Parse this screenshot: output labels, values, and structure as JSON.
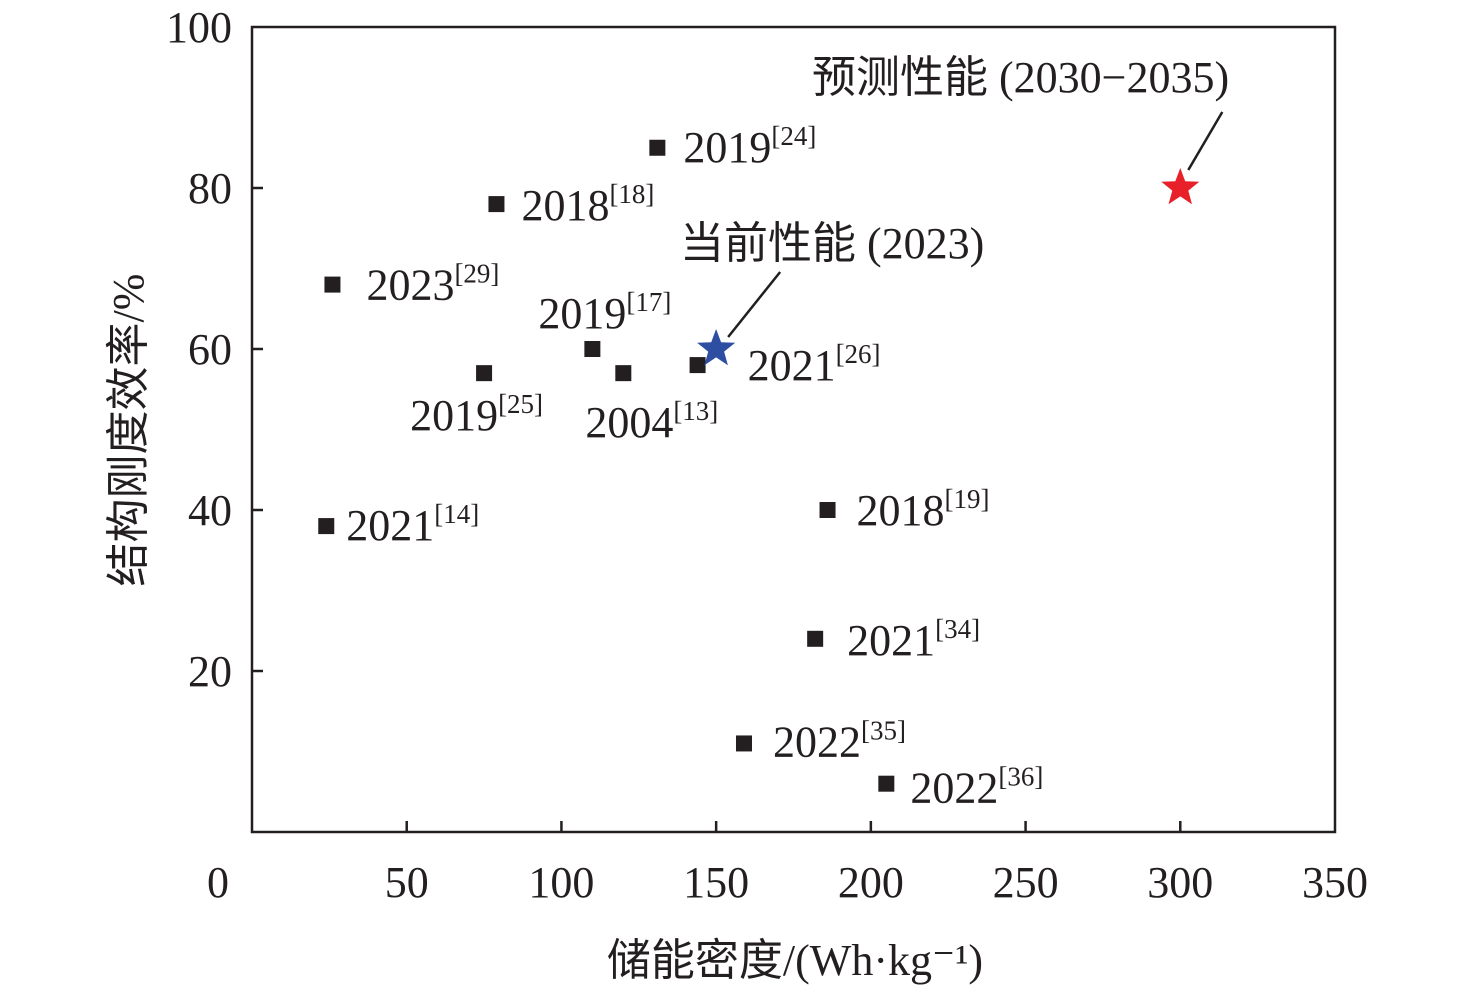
{
  "chart_data": {
    "type": "scatter",
    "xlabel": "储能密度/(Wh·kg⁻¹)",
    "ylabel": "结构刚度效率/%",
    "xlim": [
      0,
      350
    ],
    "ylim": [
      0,
      100
    ],
    "x_ticks": [
      0,
      50,
      100,
      150,
      200,
      250,
      300,
      350
    ],
    "y_ticks": [
      20,
      40,
      60,
      80,
      100
    ],
    "grid": false,
    "series": [
      {
        "name": "literature",
        "marker": "square",
        "color": "#231f20",
        "points": [
          {
            "x": 131,
            "y": 85,
            "label": "2019",
            "ref": "[24]"
          },
          {
            "x": 79,
            "y": 78,
            "label": "2018",
            "ref": "[18]"
          },
          {
            "x": 26,
            "y": 68,
            "label": "2023",
            "ref": "[29]"
          },
          {
            "x": 110,
            "y": 60,
            "label": "2019",
            "ref": "[17]"
          },
          {
            "x": 75,
            "y": 57,
            "label": "2019",
            "ref": "[25]"
          },
          {
            "x": 120,
            "y": 57,
            "label": "2004",
            "ref": "[13]"
          },
          {
            "x": 144,
            "y": 58,
            "label": "2021",
            "ref": "[26]"
          },
          {
            "x": 24,
            "y": 38,
            "label": "2021",
            "ref": "[14]"
          },
          {
            "x": 186,
            "y": 40,
            "label": "2018",
            "ref": "[19]"
          },
          {
            "x": 182,
            "y": 24,
            "label": "2021",
            "ref": "[34]"
          },
          {
            "x": 159,
            "y": 11,
            "label": "2022",
            "ref": "[35]"
          },
          {
            "x": 205,
            "y": 6,
            "label": "2022",
            "ref": "[36]"
          }
        ]
      },
      {
        "name": "current",
        "marker": "star",
        "color": "#2e4ea2",
        "points": [
          {
            "x": 150,
            "y": 60,
            "label": "当前性能 (2023)"
          }
        ]
      },
      {
        "name": "predicted",
        "marker": "star",
        "color": "#e8202a",
        "points": [
          {
            "x": 300,
            "y": 80,
            "label": "预测性能 (2030−2035)"
          }
        ]
      }
    ]
  }
}
